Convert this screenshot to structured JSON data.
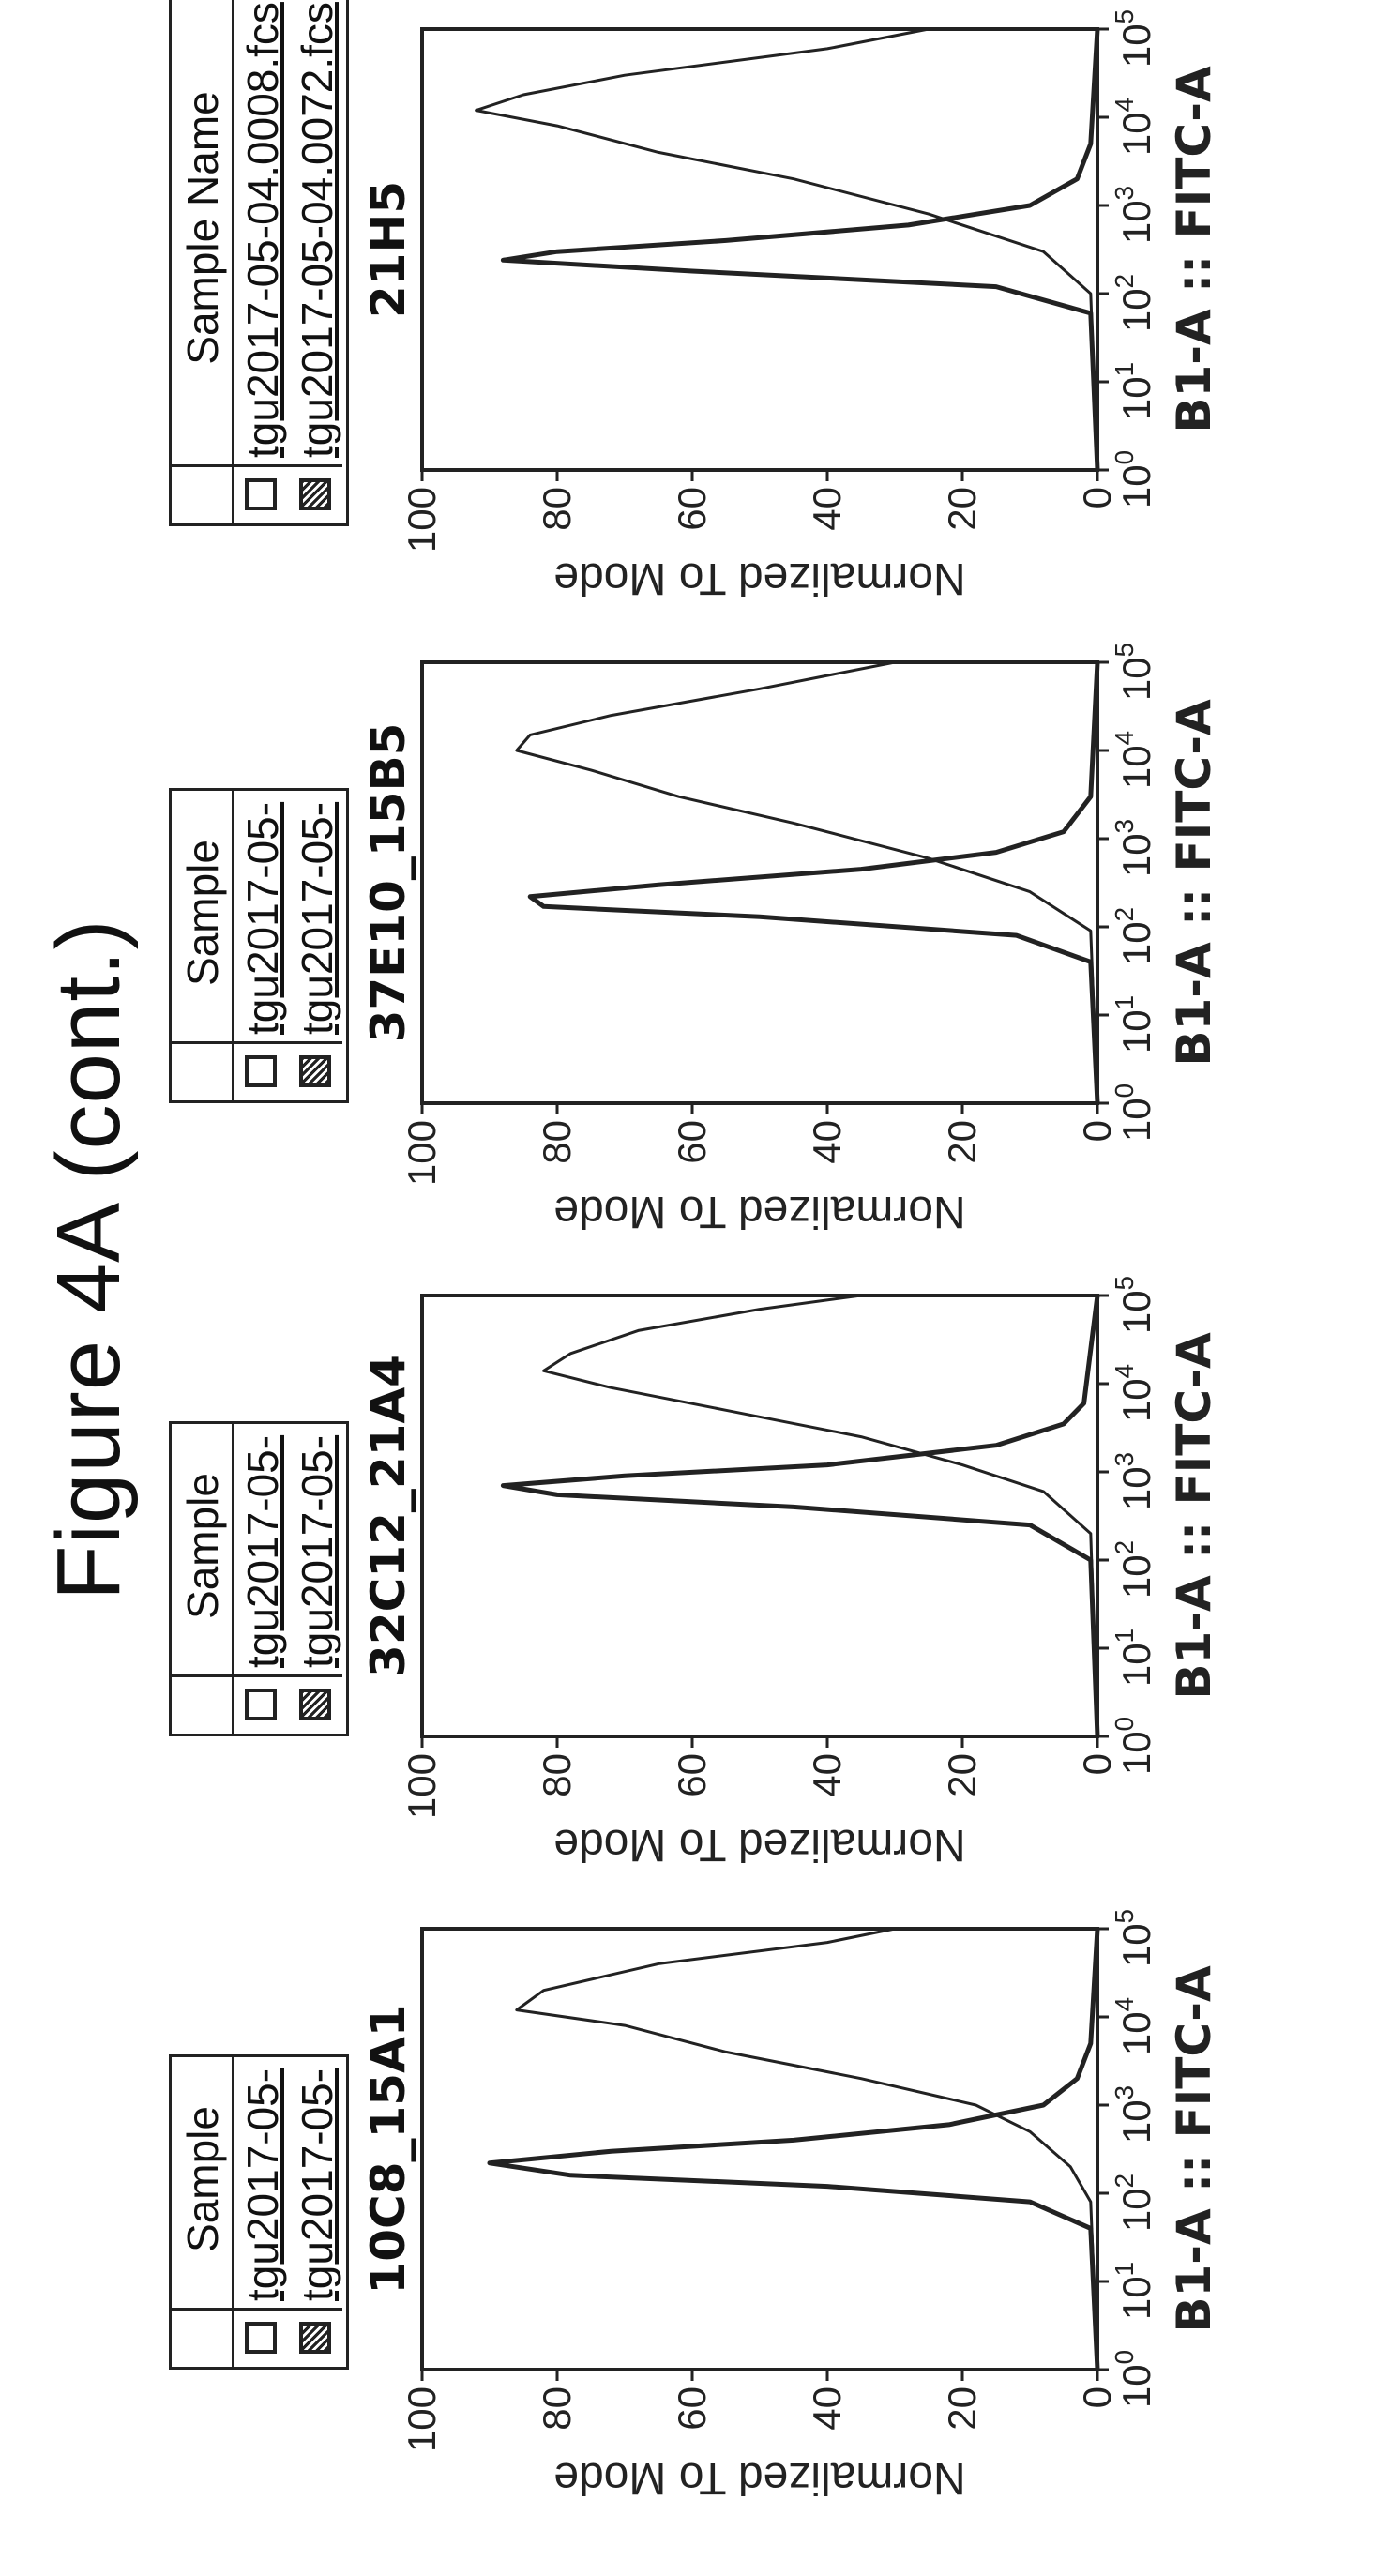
{
  "figure_title": "Figure 4A (cont.)",
  "colors": {
    "line": "#222222",
    "background": "#ffffff"
  },
  "chart_data": [
    {
      "type": "line",
      "title": "10C8_15A1",
      "xlabel": "B1-A :: FITC-A",
      "ylabel": "Normalized To Mode",
      "xscale": "log",
      "xlim": [
        1,
        100000
      ],
      "ylim": [
        0,
        100
      ],
      "yticks": [
        "0",
        "20",
        "40",
        "60",
        "80",
        "100"
      ],
      "xtick_bases": [
        "10",
        "10",
        "10",
        "10",
        "10",
        "10"
      ],
      "xtick_exps": [
        "0",
        "1",
        "2",
        "3",
        "4",
        "5"
      ],
      "legend": {
        "header": "Sample",
        "entries": [
          "tgu2017-05-",
          "tgu2017-05-"
        ]
      },
      "series": [
        {
          "x": [
            1,
            40,
            80,
            120,
            160,
            220,
            300,
            400,
            600,
            1000,
            2000,
            5000,
            100000
          ],
          "y": [
            0,
            1,
            10,
            40,
            78,
            90,
            72,
            45,
            22,
            8,
            3,
            1,
            0
          ]
        },
        {
          "x": [
            1,
            80,
            200,
            500,
            1000,
            2000,
            4000,
            8000,
            12000,
            20000,
            40000,
            70000,
            100000
          ],
          "y": [
            0,
            1,
            4,
            10,
            18,
            35,
            55,
            70,
            86,
            82,
            65,
            40,
            30
          ]
        }
      ]
    },
    {
      "type": "line",
      "title": "32C12_21A4",
      "xlabel": "B1-A :: FITC-A",
      "ylabel": "Normalized To Mode",
      "xscale": "log",
      "xlim": [
        1,
        100000
      ],
      "ylim": [
        0,
        100
      ],
      "yticks": [
        "0",
        "20",
        "40",
        "60",
        "80",
        "100"
      ],
      "xtick_bases": [
        "10",
        "10",
        "10",
        "10",
        "10",
        "10"
      ],
      "xtick_exps": [
        "0",
        "1",
        "2",
        "3",
        "4",
        "5"
      ],
      "legend": {
        "header": "Sample",
        "entries": [
          "tgu2017-05-",
          "tgu2017-05-"
        ]
      },
      "series": [
        {
          "x": [
            1,
            100,
            250,
            400,
            550,
            700,
            900,
            1200,
            2000,
            3500,
            6000,
            100000
          ],
          "y": [
            0,
            1,
            10,
            45,
            80,
            88,
            70,
            40,
            15,
            5,
            2,
            0
          ]
        },
        {
          "x": [
            1,
            200,
            600,
            1200,
            2500,
            5000,
            9000,
            14000,
            22000,
            40000,
            70000,
            100000
          ],
          "y": [
            0,
            1,
            8,
            20,
            35,
            55,
            72,
            82,
            78,
            68,
            50,
            35
          ]
        }
      ]
    },
    {
      "type": "line",
      "title": "37E10_15B5",
      "xlabel": "B1-A :: FITC-A",
      "ylabel": "Normalized To Mode",
      "xscale": "log",
      "xlim": [
        1,
        100000
      ],
      "ylim": [
        0,
        100
      ],
      "yticks": [
        "0",
        "20",
        "40",
        "60",
        "80",
        "100"
      ],
      "xtick_bases": [
        "10",
        "10",
        "10",
        "10",
        "10",
        "10"
      ],
      "xtick_exps": [
        "0",
        "1",
        "2",
        "3",
        "4",
        "5"
      ],
      "legend": {
        "header": "Sample",
        "entries": [
          "tgu2017-05-",
          "tgu2017-05-"
        ]
      },
      "series": [
        {
          "x": [
            1,
            40,
            80,
            130,
            170,
            220,
            300,
            450,
            700,
            1200,
            3000,
            100000
          ],
          "y": [
            0,
            1,
            12,
            50,
            82,
            84,
            65,
            35,
            15,
            5,
            1,
            0
          ]
        },
        {
          "x": [
            1,
            90,
            250,
            600,
            1500,
            3000,
            6000,
            10000,
            15000,
            25000,
            50000,
            100000
          ],
          "y": [
            0,
            1,
            10,
            25,
            45,
            62,
            75,
            86,
            84,
            72,
            50,
            30
          ]
        }
      ]
    },
    {
      "type": "line",
      "title": "21H5",
      "xlabel": "B1-A :: FITC-A",
      "ylabel": "Normalized To Mode",
      "xscale": "log",
      "xlim": [
        1,
        100000
      ],
      "ylim": [
        0,
        100
      ],
      "yticks": [
        "0",
        "20",
        "40",
        "60",
        "80",
        "100"
      ],
      "xtick_bases": [
        "10",
        "10",
        "10",
        "10",
        "10",
        "10"
      ],
      "xtick_exps": [
        "0",
        "1",
        "2",
        "3",
        "4",
        "5"
      ],
      "legend": {
        "header": "Sample Name",
        "entries": [
          "tgu2017-05-04.0008.fcs",
          "tgu2017-05-04.0072.fcs"
        ]
      },
      "series": [
        {
          "x": [
            1,
            60,
            120,
            180,
            240,
            300,
            400,
            600,
            1000,
            2000,
            5000,
            100000
          ],
          "y": [
            0,
            1,
            15,
            60,
            88,
            80,
            55,
            28,
            10,
            3,
            1,
            0
          ]
        },
        {
          "x": [
            1,
            100,
            300,
            800,
            2000,
            4000,
            8000,
            12000,
            18000,
            30000,
            60000,
            100000
          ],
          "y": [
            0,
            1,
            8,
            25,
            45,
            65,
            80,
            92,
            85,
            70,
            40,
            25
          ]
        }
      ]
    }
  ]
}
